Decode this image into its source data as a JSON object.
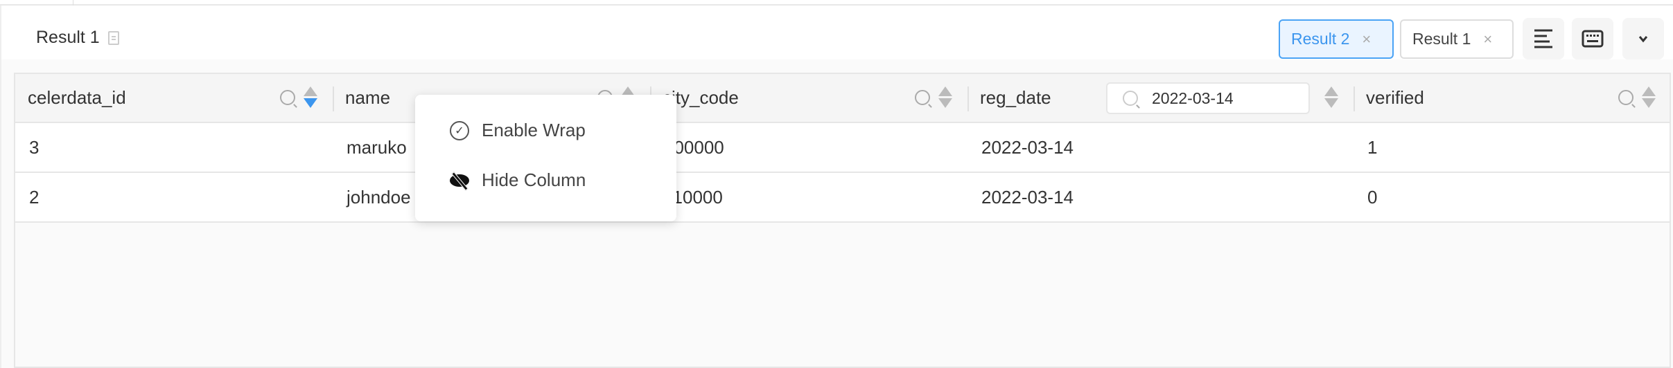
{
  "panel": {
    "title": "Result 1",
    "copy_icon": "copy-icon"
  },
  "toolbar": {
    "tabs": [
      {
        "label": "Result 2",
        "active": true
      },
      {
        "label": "Result 1",
        "active": false
      }
    ],
    "close_glyph": "×",
    "icons": [
      "align-left-icon",
      "keyboard-icon",
      "chevron-down-icon"
    ],
    "accent": "#3b95ee"
  },
  "table": {
    "columns": [
      "celerdata_id",
      "name",
      "city_code",
      "reg_date",
      "verified"
    ],
    "filter_value": "2022-03-14",
    "rows": [
      [
        "3",
        "maruko",
        "100000",
        "2022-03-14",
        "1"
      ],
      [
        "2",
        "johndoe",
        "110000",
        "2022-03-14",
        "0"
      ]
    ]
  },
  "context_menu": {
    "items": [
      "Enable Wrap",
      "Hide Column"
    ]
  }
}
